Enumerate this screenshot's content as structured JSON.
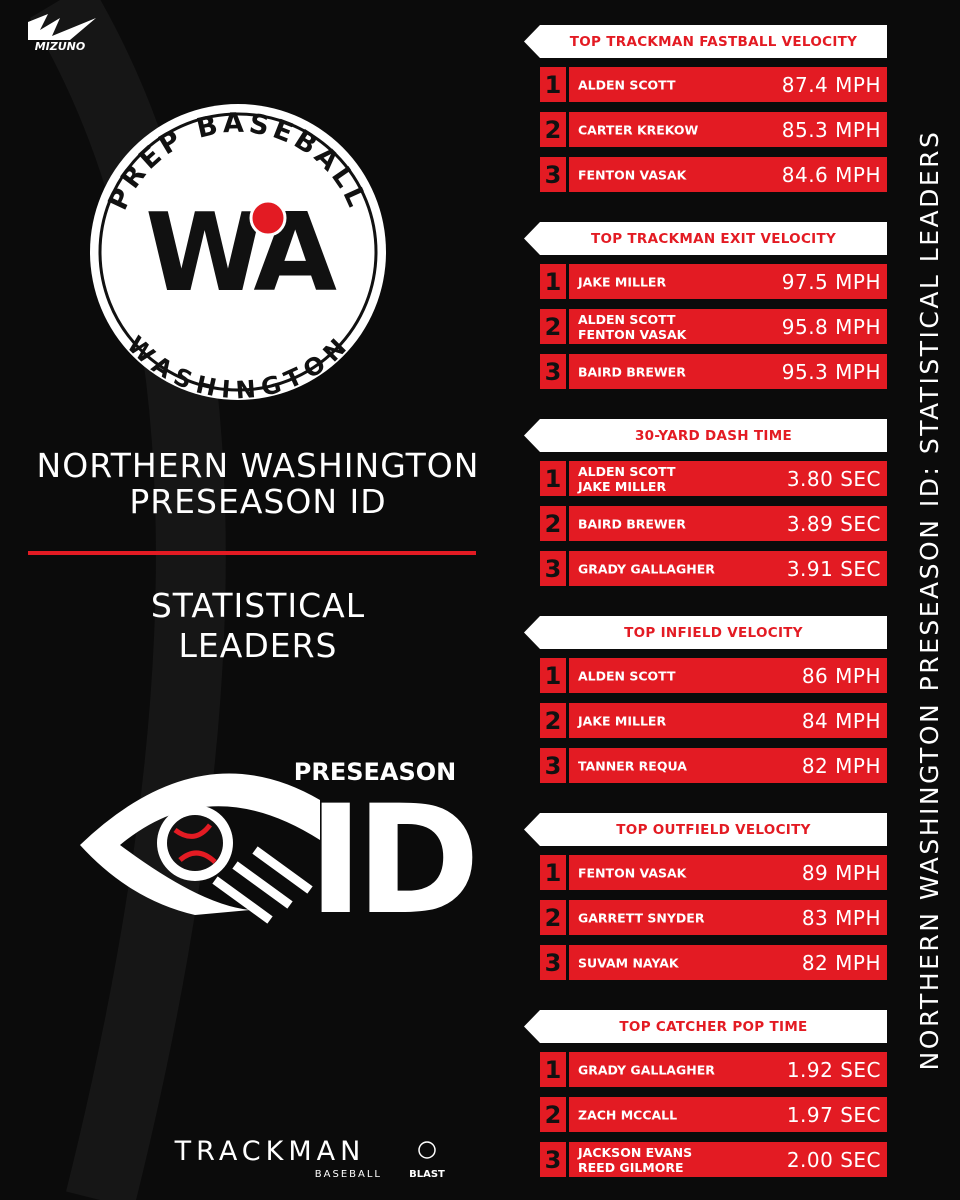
{
  "brand": "MIZUNO",
  "logo": {
    "top_arc": "PREP BASEBALL",
    "letters": "WA",
    "bottom_arc": "WASHINGTON"
  },
  "headline": [
    "NORTHERN WASHINGTON",
    "PRESEASON ID"
  ],
  "subhead": [
    "STATISTICAL",
    "LEADERS"
  ],
  "event_logo": {
    "top": "PRESEASON",
    "big": "ID"
  },
  "sponsors": {
    "trackman": "TRACKMAN",
    "trackman_sub": "BASEBALL",
    "blast": "BLAST"
  },
  "side_title": "NORTHERN WASHINGTON PRESEASON ID: STATISTICAL LEADERS",
  "sections": [
    {
      "title": "TOP TRACKMAN FASTBALL VELOCITY",
      "rows": [
        {
          "rank": "1",
          "names": [
            "ALDEN SCOTT"
          ],
          "value": "87.4 MPH"
        },
        {
          "rank": "2",
          "names": [
            "CARTER KREKOW"
          ],
          "value": "85.3 MPH"
        },
        {
          "rank": "3",
          "names": [
            "FENTON VASAK"
          ],
          "value": "84.6 MPH"
        }
      ]
    },
    {
      "title": "TOP TRACKMAN EXIT VELOCITY",
      "rows": [
        {
          "rank": "1",
          "names": [
            "JAKE MILLER"
          ],
          "value": "97.5 MPH"
        },
        {
          "rank": "2",
          "names": [
            "ALDEN SCOTT",
            "FENTON VASAK"
          ],
          "value": "95.8 MPH"
        },
        {
          "rank": "3",
          "names": [
            "BAIRD BREWER"
          ],
          "value": "95.3 MPH"
        }
      ]
    },
    {
      "title": "30-YARD DASH TIME",
      "rows": [
        {
          "rank": "1",
          "names": [
            "ALDEN SCOTT",
            "JAKE MILLER"
          ],
          "value": "3.80 SEC"
        },
        {
          "rank": "2",
          "names": [
            "BAIRD BREWER"
          ],
          "value": "3.89 SEC"
        },
        {
          "rank": "3",
          "names": [
            "GRADY GALLAGHER"
          ],
          "value": "3.91 SEC"
        }
      ]
    },
    {
      "title": "TOP INFIELD VELOCITY",
      "rows": [
        {
          "rank": "1",
          "names": [
            "ALDEN SCOTT"
          ],
          "value": "86 MPH"
        },
        {
          "rank": "2",
          "names": [
            "JAKE MILLER"
          ],
          "value": "84 MPH"
        },
        {
          "rank": "3",
          "names": [
            "TANNER REQUA"
          ],
          "value": "82 MPH"
        }
      ]
    },
    {
      "title": "TOP OUTFIELD VELOCITY",
      "rows": [
        {
          "rank": "1",
          "names": [
            "FENTON VASAK"
          ],
          "value": "89 MPH"
        },
        {
          "rank": "2",
          "names": [
            "GARRETT SNYDER"
          ],
          "value": "83 MPH"
        },
        {
          "rank": "3",
          "names": [
            "SUVAM NAYAK"
          ],
          "value": "82 MPH"
        }
      ]
    },
    {
      "title": "TOP CATCHER POP TIME",
      "rows": [
        {
          "rank": "1",
          "names": [
            "GRADY GALLAGHER"
          ],
          "value": "1.92 SEC"
        },
        {
          "rank": "2",
          "names": [
            "ZACH MCCALL"
          ],
          "value": "1.97 SEC"
        },
        {
          "rank": "3",
          "names": [
            "JACKSON EVANS",
            "REED GILMORE"
          ],
          "value": "2.00 SEC"
        }
      ]
    }
  ]
}
